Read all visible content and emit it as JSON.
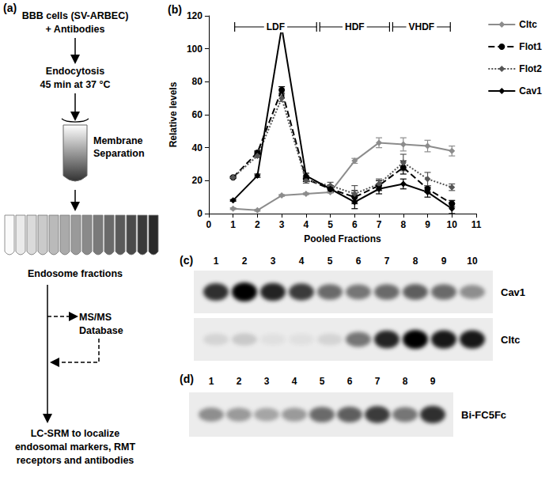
{
  "diagram": {
    "label": "(a)",
    "start": [
      "BBB cells (SV-ARBEC)",
      "+ Antibodies"
    ],
    "incubation": [
      "Endocytosis",
      "45 min at 37 °C"
    ],
    "separation": [
      "Membrane",
      "Separation"
    ],
    "fractions": [
      "Endosome fractions"
    ],
    "database": [
      "MS/MS",
      "Database"
    ],
    "analysis": [
      "LC-SRM to localize",
      "endosomal markers, RMT",
      "receptors and antibodies"
    ]
  },
  "chart_data": {
    "type": "line",
    "label": "(b)",
    "x_label": "Pooled Fractions",
    "y_label": "Relative levels",
    "x": [
      1,
      2,
      3,
      4,
      5,
      6,
      7,
      8,
      9,
      10
    ],
    "xlim": [
      0,
      11
    ],
    "xticks": [
      0,
      1,
      2,
      3,
      4,
      5,
      6,
      7,
      8,
      9,
      10,
      11
    ],
    "ylim": [
      0,
      120
    ],
    "yticks": [
      0,
      20,
      40,
      60,
      80,
      100,
      120
    ],
    "grid": false,
    "legend": "upper right",
    "regions": [
      {
        "label": "LDF",
        "start": 1,
        "end": 4.5
      },
      {
        "label": "HDF",
        "start": 4.5,
        "end": 7.5
      },
      {
        "label": "VHDF",
        "start": 7.5,
        "end": 10
      }
    ],
    "series": [
      {
        "name": "Cltc",
        "color": "#8c8c8c",
        "marker": "diamond",
        "line_style": "solid",
        "values": [
          3,
          2,
          11,
          12,
          13,
          32,
          43,
          42,
          41,
          38
        ],
        "errors": [
          0.5,
          0.5,
          0.5,
          0.5,
          0.5,
          1.5,
          3,
          4,
          3.5,
          3
        ]
      },
      {
        "name": "Flot1",
        "color": "#000000",
        "marker": "circle",
        "line_style": "dashed",
        "values": [
          22,
          37,
          75,
          21,
          15,
          10,
          17,
          28,
          15,
          6
        ],
        "errors": [
          0.5,
          1,
          2,
          1.5,
          2,
          4,
          3,
          4,
          2,
          2
        ]
      },
      {
        "name": "Flot2",
        "color": "#555555",
        "marker": "diamond",
        "line_style": "dotted",
        "values": [
          22,
          35,
          70,
          20,
          17,
          12,
          18,
          31,
          21,
          16
        ],
        "errors": [
          0.5,
          1,
          2,
          1.5,
          2,
          5,
          3,
          5,
          4,
          2
        ]
      },
      {
        "name": "Cav1",
        "color": "#000000",
        "marker": "diamond",
        "line_style": "solid",
        "values": [
          8,
          23,
          113,
          23,
          15,
          7,
          15,
          18,
          13,
          3
        ],
        "errors": [
          0.5,
          1,
          1,
          1.5,
          2,
          4,
          3,
          3,
          3,
          3
        ]
      }
    ]
  },
  "blots": [
    {
      "label": "(c)",
      "lanes": [
        1,
        2,
        3,
        4,
        5,
        6,
        7,
        8,
        9,
        10
      ],
      "rows": [
        {
          "name": "Cav1",
          "intensity": [
            0.8,
            1,
            0.85,
            0.75,
            0.55,
            0.5,
            0.55,
            0.6,
            0.55,
            0.4
          ]
        },
        {
          "name": "Cltc",
          "intensity": [
            0.1,
            0.15,
            0.05,
            0.05,
            0.1,
            0.5,
            0.85,
            1,
            0.9,
            0.9
          ]
        }
      ]
    },
    {
      "label": "(d)",
      "lanes": [
        1,
        2,
        3,
        4,
        5,
        6,
        7,
        8,
        9
      ],
      "rows": [
        {
          "name": "Bi-FC5Fc",
          "intensity": [
            0.4,
            0.35,
            0.3,
            0.35,
            0.55,
            0.6,
            0.75,
            0.5,
            0.8
          ]
        }
      ]
    }
  ]
}
